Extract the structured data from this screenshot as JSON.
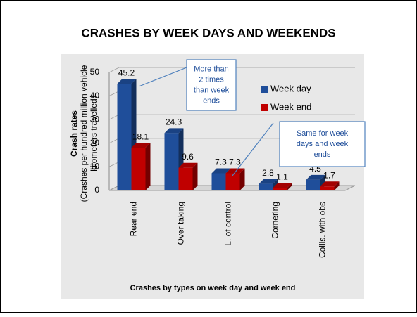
{
  "chart_data": {
    "type": "bar3d",
    "title": "CRASHES BY WEEK DAYS AND WEEKENDS",
    "ylabel_lines": [
      "Crash rates",
      "(Crashes per hundred million vehicle",
      "kilometers travelled)"
    ],
    "xlabel": "Crashes by types on week day and week end",
    "categories": [
      "Rear end",
      "Over taking",
      "L. of control",
      "Cornering",
      "Collis. with obs"
    ],
    "series": [
      {
        "name": "Week day",
        "color": "#1f4e9a",
        "values": [
          45.2,
          24.3,
          7.3,
          2.8,
          4.5
        ]
      },
      {
        "name": "Week end",
        "color": "#c00000",
        "values": [
          18.1,
          9.6,
          7.3,
          1.1,
          1.7
        ]
      }
    ],
    "ylim": [
      0,
      50
    ],
    "yticks": [
      0,
      10,
      20,
      30,
      40,
      50
    ],
    "grid": true,
    "legend": "right",
    "annotations": [
      {
        "lines": [
          "More than",
          "2 times",
          "than week",
          "ends"
        ]
      },
      {
        "lines": [
          "Same for week",
          "days and week",
          "ends"
        ]
      }
    ]
  }
}
